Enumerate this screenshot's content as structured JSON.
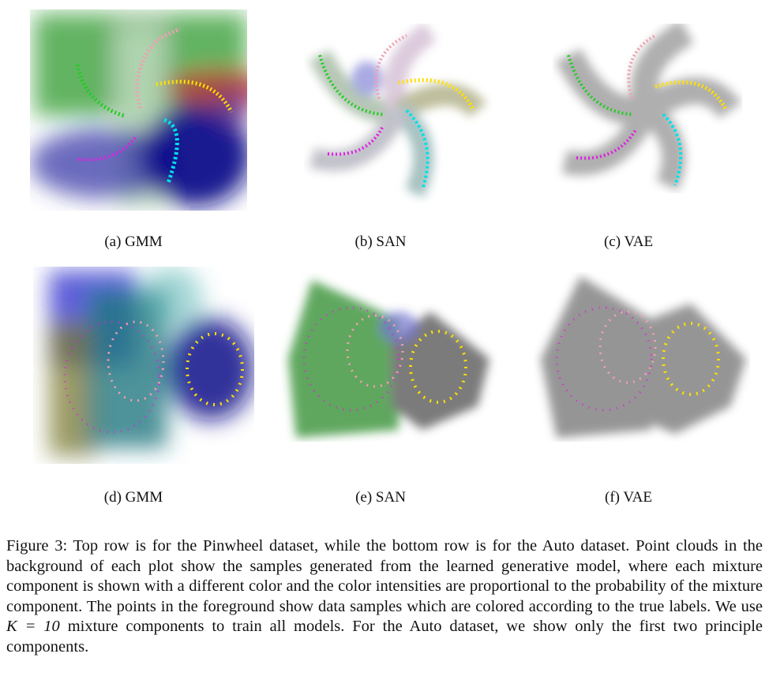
{
  "figure": {
    "panels": [
      {
        "id": "a",
        "label": "(a) GMM"
      },
      {
        "id": "b",
        "label": "(b) SAN"
      },
      {
        "id": "c",
        "label": "(c) VAE"
      },
      {
        "id": "d",
        "label": "(d) GMM"
      },
      {
        "id": "e",
        "label": "(e) SAN"
      },
      {
        "id": "f",
        "label": "(f) VAE"
      }
    ],
    "caption": {
      "prefix": "Figure 3: Top row is for the Pinwheel dataset, while the bottom row is for the Auto dataset. Point clouds in the background of each plot show the samples generated from the learned generative model, where each mixture component is shown with a different color and the color intensities are proportional to the probability of the mixture component. The points in the foreground show data samples which are colored according to the true labels. We use ",
      "math": "K = 10",
      "suffix": " mixture components to train all models. For the Auto dataset, we show only the first two principle components."
    }
  },
  "colors": {
    "green": "#22cc22",
    "pink": "#f0a0b0",
    "yellow": "#ffe000",
    "cyan": "#00e0e8",
    "magenta": "#e020e0",
    "navy": "#000a80",
    "gray": "#606060"
  }
}
